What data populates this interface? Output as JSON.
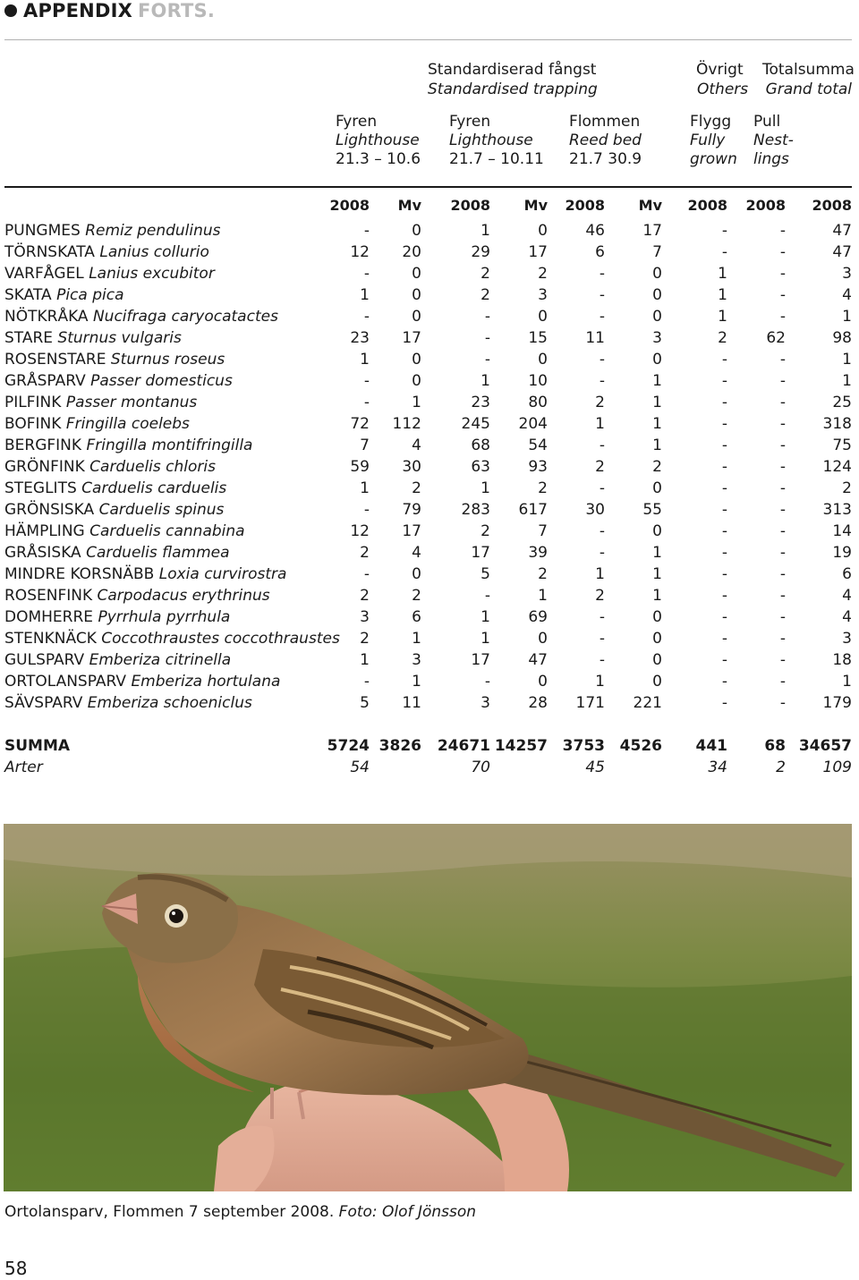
{
  "header": {
    "title": "APPENDIX",
    "title_faded": "FORTS."
  },
  "groups": {
    "standardised_sv": "Standardiserad fångst",
    "standardised_en": "Standardised trapping",
    "other_sv": "Övrigt",
    "other_en": "Others",
    "total_sv": "Totalsumma",
    "total_en": "Grand total"
  },
  "sites": {
    "fyren1": {
      "name": "Fyren",
      "name_en": "Lighthouse",
      "period": "21.3 – 10.6"
    },
    "fyren2": {
      "name": "Fyren",
      "name_en": "Lighthouse",
      "period": "21.7 – 10.11"
    },
    "flommen": {
      "name": "Flommen",
      "name_en": "Reed bed",
      "period": "21.7 30.9"
    },
    "flygg": {
      "name": "Flygg",
      "name_en": "Fully",
      "period": "grown"
    },
    "pull": {
      "name": "Pull",
      "name_en": "Nest-",
      "period": "lings"
    }
  },
  "columns": [
    "2008",
    "Mv",
    "2008",
    "Mv",
    "2008",
    "Mv",
    "2008",
    "2008",
    "2008"
  ],
  "rows": [
    {
      "sv": "PUNGMES",
      "lat": "Remiz pendulinus",
      "v": [
        "-",
        "0",
        "1",
        "0",
        "46",
        "17",
        "-",
        "-",
        "47"
      ]
    },
    {
      "sv": "TÖRNSKATA",
      "lat": "Lanius collurio",
      "v": [
        "12",
        "20",
        "29",
        "17",
        "6",
        "7",
        "-",
        "-",
        "47"
      ]
    },
    {
      "sv": "VARFÅGEL",
      "lat": "Lanius excubitor",
      "v": [
        "-",
        "0",
        "2",
        "2",
        "-",
        "0",
        "1",
        "-",
        "3"
      ]
    },
    {
      "sv": "SKATA",
      "lat": "Pica pica",
      "v": [
        "1",
        "0",
        "2",
        "3",
        "-",
        "0",
        "1",
        "-",
        "4"
      ]
    },
    {
      "sv": "NÖTKRÅKA",
      "lat": "Nucifraga caryocatactes",
      "v": [
        "-",
        "0",
        "-",
        "0",
        "-",
        "0",
        "1",
        "-",
        "1"
      ]
    },
    {
      "sv": "STARE",
      "lat": "Sturnus vulgaris",
      "v": [
        "23",
        "17",
        "-",
        "15",
        "11",
        "3",
        "2",
        "62",
        "98"
      ]
    },
    {
      "sv": "ROSENSTARE",
      "lat": "Sturnus roseus",
      "v": [
        "1",
        "0",
        "-",
        "0",
        "-",
        "0",
        "-",
        "-",
        "1"
      ]
    },
    {
      "sv": "GRÅSPARV",
      "lat": "Passer domesticus",
      "v": [
        "-",
        "0",
        "1",
        "10",
        "-",
        "1",
        "-",
        "-",
        "1"
      ]
    },
    {
      "sv": "PILFINK",
      "lat": "Passer montanus",
      "v": [
        "-",
        "1",
        "23",
        "80",
        "2",
        "1",
        "-",
        "-",
        "25"
      ]
    },
    {
      "sv": "BOFINK",
      "lat": "Fringilla coelebs",
      "v": [
        "72",
        "112",
        "245",
        "204",
        "1",
        "1",
        "-",
        "-",
        "318"
      ]
    },
    {
      "sv": "BERGFINK",
      "lat": "Fringilla montifringilla",
      "v": [
        "7",
        "4",
        "68",
        "54",
        "-",
        "1",
        "-",
        "-",
        "75"
      ]
    },
    {
      "sv": "GRÖNFINK",
      "lat": "Carduelis chloris",
      "v": [
        "59",
        "30",
        "63",
        "93",
        "2",
        "2",
        "-",
        "-",
        "124"
      ]
    },
    {
      "sv": "STEGLITS",
      "lat": "Carduelis carduelis",
      "v": [
        "1",
        "2",
        "1",
        "2",
        "-",
        "0",
        "-",
        "-",
        "2"
      ]
    },
    {
      "sv": "GRÖNSISKA",
      "lat": "Carduelis spinus",
      "v": [
        "-",
        "79",
        "283",
        "617",
        "30",
        "55",
        "-",
        "-",
        "313"
      ]
    },
    {
      "sv": "HÄMPLING",
      "lat": "Carduelis cannabina",
      "v": [
        "12",
        "17",
        "2",
        "7",
        "-",
        "0",
        "-",
        "-",
        "14"
      ]
    },
    {
      "sv": "GRÅSISKA",
      "lat": "Carduelis flammea",
      "v": [
        "2",
        "4",
        "17",
        "39",
        "-",
        "1",
        "-",
        "-",
        "19"
      ]
    },
    {
      "sv": "MINDRE KORSNÄBB",
      "lat": "Loxia curvirostra",
      "v": [
        "-",
        "0",
        "5",
        "2",
        "1",
        "1",
        "-",
        "-",
        "6"
      ]
    },
    {
      "sv": "ROSENFINK",
      "lat": "Carpodacus erythrinus",
      "v": [
        "2",
        "2",
        "-",
        "1",
        "2",
        "1",
        "-",
        "-",
        "4"
      ]
    },
    {
      "sv": "DOMHERRE",
      "lat": "Pyrrhula pyrrhula",
      "v": [
        "3",
        "6",
        "1",
        "69",
        "-",
        "0",
        "-",
        "-",
        "4"
      ]
    },
    {
      "sv": "STENKNÄCK",
      "lat": "Coccothraustes coccothraustes",
      "v": [
        "2",
        "1",
        "1",
        "0",
        "-",
        "0",
        "-",
        "-",
        "3"
      ]
    },
    {
      "sv": "GULSPARV",
      "lat": "Emberiza citrinella",
      "v": [
        "1",
        "3",
        "17",
        "47",
        "-",
        "0",
        "-",
        "-",
        "18"
      ]
    },
    {
      "sv": "ORTOLANSPARV",
      "lat": "Emberiza hortulana",
      "v": [
        "-",
        "1",
        "-",
        "0",
        "1",
        "0",
        "-",
        "-",
        "1"
      ]
    },
    {
      "sv": "SÄVSPARV",
      "lat": "Emberiza schoeniclus",
      "v": [
        "5",
        "11",
        "3",
        "28",
        "171",
        "221",
        "-",
        "-",
        "179"
      ]
    }
  ],
  "summa": {
    "label": "SUMMA",
    "v": [
      "5724",
      "3826",
      "24671",
      "14257",
      "3753",
      "4526",
      "441",
      "68",
      "34657"
    ]
  },
  "arter": {
    "label": "Arter",
    "v": [
      "54",
      "",
      "70",
      "",
      "45",
      "",
      "34",
      "2",
      "109"
    ]
  },
  "caption": {
    "text": "Ortolansparv, Flommen 7 september 2008.",
    "credit": "Foto: Olof Jönsson"
  },
  "page_number": "58"
}
